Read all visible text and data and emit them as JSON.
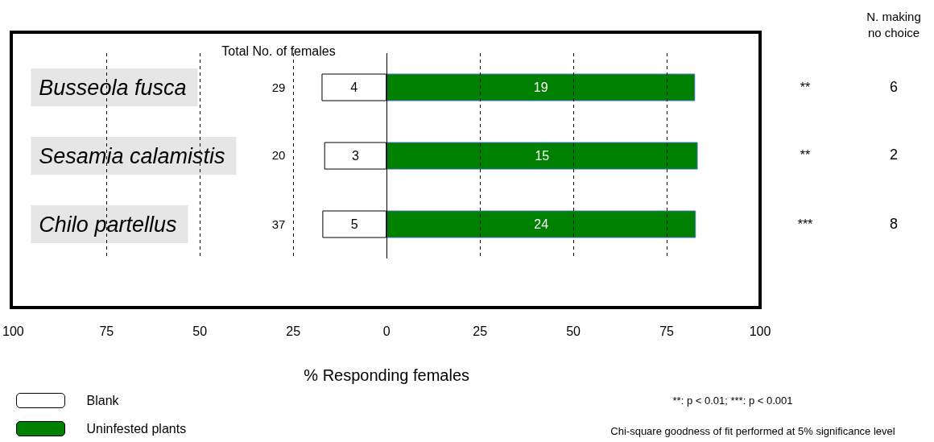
{
  "chart_data": {
    "type": "bar",
    "orientation": "horizontal",
    "stacked": true,
    "categories": [
      "Busseola fusca",
      "Sesamia calamistis",
      "Chilo partellus"
    ],
    "series": [
      {
        "name": "Blank",
        "color": "#ffffff",
        "values": [
          -17.4,
          -16.7,
          -17.2
        ]
      },
      {
        "name": "Uninfested plants",
        "color": "#008000",
        "values": [
          82.6,
          83.3,
          82.8
        ]
      }
    ],
    "xlim": [
      -100,
      100
    ],
    "xticks": [
      {
        "value": -100,
        "label": "100"
      },
      {
        "value": -75,
        "label": "75"
      },
      {
        "value": -50,
        "label": "50"
      },
      {
        "value": -25,
        "label": "25"
      },
      0,
      25,
      50,
      75,
      100
    ],
    "xlabel": "% Responding females",
    "grid": "x",
    "legend": "bottom left",
    "annotations": [
      "Total No. of females",
      "29",
      "20",
      "37",
      "**",
      "**",
      "***",
      "N. making\nno choice",
      "6",
      "2",
      "8",
      "**: p < 0.01; ***: p < 0.001",
      "Chi-square goodness of fit performed at 5% significance level",
      "4",
      "19",
      "3",
      "15",
      "5",
      "24"
    ]
  }
}
